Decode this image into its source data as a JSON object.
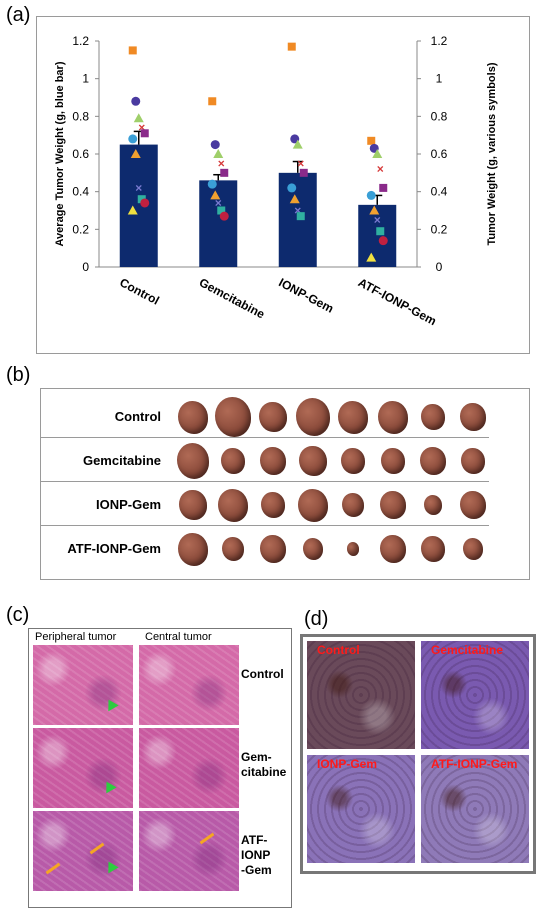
{
  "panels": {
    "a": "(a)",
    "b": "(b)",
    "c": "(c)",
    "d": "(d)"
  },
  "chart_data": {
    "type": "bar",
    "categories": [
      "Control",
      "Gemcitabine",
      "IONP-Gem",
      "ATF-IONP-Gem"
    ],
    "values": [
      0.65,
      0.46,
      0.5,
      0.33
    ],
    "errors": [
      0.07,
      0.03,
      0.06,
      0.05
    ],
    "ylabel": "Average Tumor Weight (g, blue bar)",
    "y2label": "Tumor Weight (g, various symbols)",
    "ylim": [
      0,
      1.2
    ],
    "yticks": [
      "0",
      "0.2",
      "0.4",
      "0.6",
      "0.8",
      "1",
      "1.2"
    ],
    "bar_color": "#0d2a6e",
    "points": [
      [
        1.15,
        0.88,
        0.79,
        0.74,
        0.71,
        0.68,
        0.6,
        0.42,
        0.36,
        0.34,
        0.3
      ],
      [
        0.88,
        0.65,
        0.6,
        0.55,
        0.5,
        0.44,
        0.38,
        0.34,
        0.3,
        0.27
      ],
      [
        1.17,
        0.68,
        0.65,
        0.55,
        0.5,
        0.42,
        0.36,
        0.3,
        0.27
      ],
      [
        0.67,
        0.63,
        0.6,
        0.52,
        0.42,
        0.38,
        0.3,
        0.25,
        0.19,
        0.14,
        0.05
      ]
    ],
    "point_colors": [
      "#f08a24",
      "#4a3aa0",
      "#9fcf6a",
      "#d63a3a",
      "#8a2a8a",
      "#3a9fd6",
      "#f0a030",
      "#7a7ad0",
      "#30b0a0",
      "#c02040",
      "#f0e040"
    ]
  },
  "tumors": {
    "rows": [
      {
        "label": "Control",
        "count": 8,
        "sizes": [
          30,
          36,
          28,
          34,
          30,
          30,
          24,
          26
        ]
      },
      {
        "label": "Gemcitabine",
        "count": 8,
        "sizes": [
          32,
          24,
          26,
          28,
          24,
          24,
          26,
          24
        ]
      },
      {
        "label": "IONP-Gem",
        "count": 8,
        "sizes": [
          28,
          30,
          24,
          30,
          22,
          26,
          18,
          26
        ]
      },
      {
        "label": "ATF-IONP-Gem",
        "count": 8,
        "sizes": [
          30,
          22,
          26,
          20,
          12,
          26,
          24,
          20
        ]
      }
    ],
    "color": "#8a4a3a"
  },
  "histology": {
    "col_labels": [
      "Peripheral tumor",
      "Central tumor"
    ],
    "row_labels": [
      "Control",
      "Gem-\ncitabine",
      "ATF-\nIONP\n-Gem"
    ],
    "colors": [
      "#d46aa8",
      "#c95aa0",
      "#b85aa8"
    ]
  },
  "ihc": {
    "labels": [
      "Control",
      "Gemcitabine",
      "IONP-Gem",
      "ATF-IONP-Gem"
    ],
    "colors": [
      "#6a4a5a",
      "#7a5ab0",
      "#8a72b8",
      "#8f7ab8"
    ]
  }
}
